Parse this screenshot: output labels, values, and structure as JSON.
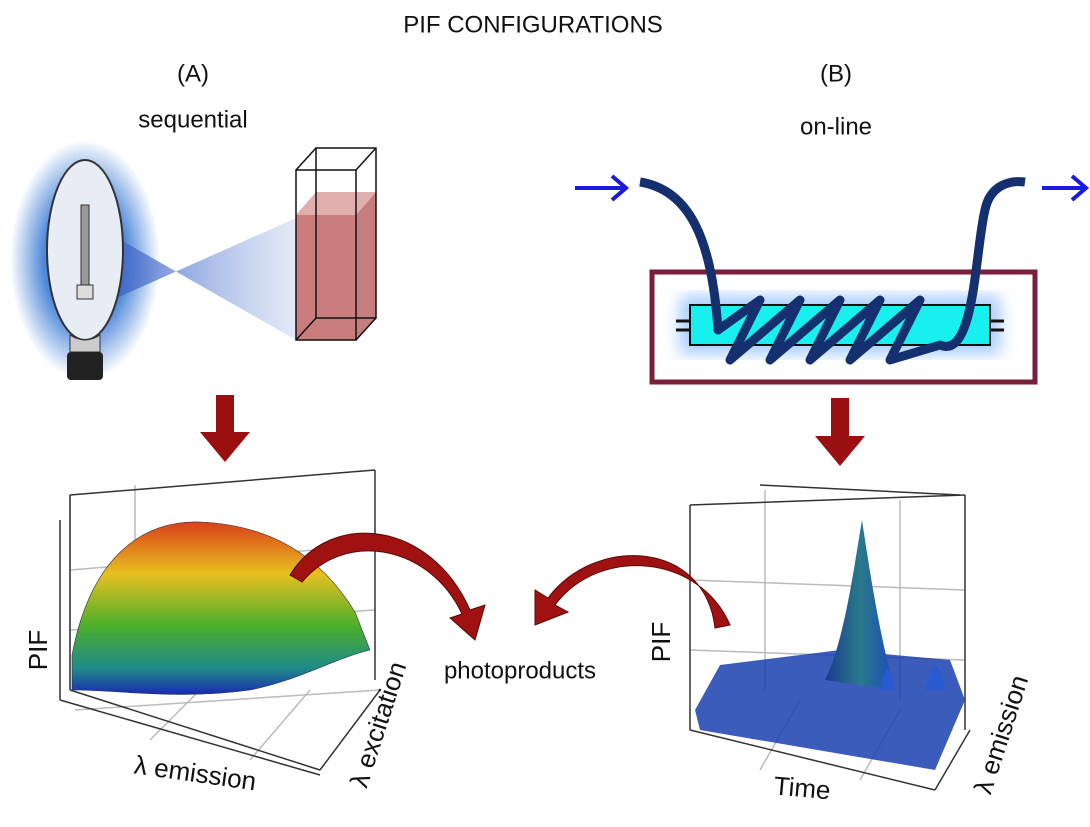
{
  "title": "PIF CONFIGURATIONS",
  "panels": [
    {
      "label": "(A)",
      "mode": "sequential",
      "plot": {
        "z_label": "PIF",
        "x_label": "λ emission",
        "y_label": "λ excitation"
      }
    },
    {
      "label": "(B)",
      "mode": "on-line",
      "plot": {
        "z_label": "PIF",
        "x_label": "Time",
        "y_label": "λ emission"
      }
    }
  ],
  "center_label": "photoproducts"
}
